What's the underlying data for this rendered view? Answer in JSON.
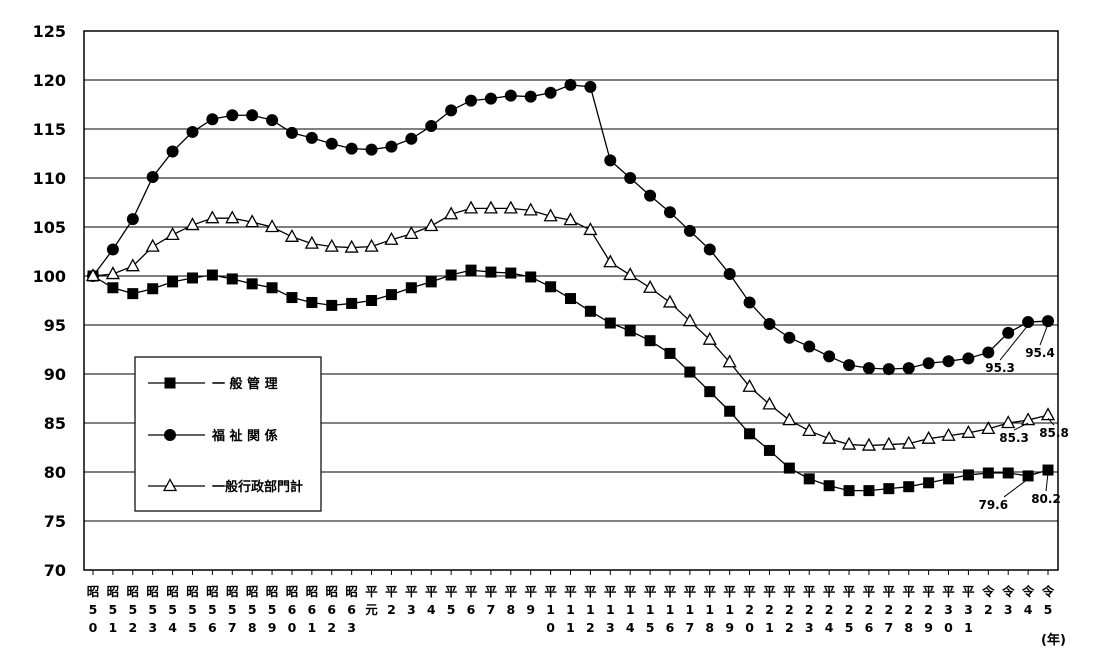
{
  "chart_data": {
    "type": "line",
    "ylim": [
      70,
      125
    ],
    "yticks": [
      70,
      75,
      80,
      85,
      90,
      95,
      100,
      105,
      110,
      115,
      120,
      125
    ],
    "grid": true,
    "legend_position": "left-middle",
    "x_unit_label": "(年)",
    "categories": [
      [
        "昭",
        "5",
        "0"
      ],
      [
        "昭",
        "5",
        "1"
      ],
      [
        "昭",
        "5",
        "2"
      ],
      [
        "昭",
        "5",
        "3"
      ],
      [
        "昭",
        "5",
        "4"
      ],
      [
        "昭",
        "5",
        "5"
      ],
      [
        "昭",
        "5",
        "6"
      ],
      [
        "昭",
        "5",
        "7"
      ],
      [
        "昭",
        "5",
        "8"
      ],
      [
        "昭",
        "5",
        "9"
      ],
      [
        "昭",
        "6",
        "0"
      ],
      [
        "昭",
        "6",
        "1"
      ],
      [
        "昭",
        "6",
        "2"
      ],
      [
        "昭",
        "6",
        "3"
      ],
      [
        "平",
        "元",
        ""
      ],
      [
        "平",
        "2",
        ""
      ],
      [
        "平",
        "3",
        ""
      ],
      [
        "平",
        "4",
        ""
      ],
      [
        "平",
        "5",
        ""
      ],
      [
        "平",
        "6",
        ""
      ],
      [
        "平",
        "7",
        ""
      ],
      [
        "平",
        "8",
        ""
      ],
      [
        "平",
        "9",
        ""
      ],
      [
        "平",
        "1",
        "0"
      ],
      [
        "平",
        "1",
        "1"
      ],
      [
        "平",
        "1",
        "2"
      ],
      [
        "平",
        "1",
        "3"
      ],
      [
        "平",
        "1",
        "4"
      ],
      [
        "平",
        "1",
        "5"
      ],
      [
        "平",
        "1",
        "6"
      ],
      [
        "平",
        "1",
        "7"
      ],
      [
        "平",
        "1",
        "8"
      ],
      [
        "平",
        "1",
        "9"
      ],
      [
        "平",
        "2",
        "0"
      ],
      [
        "平",
        "2",
        "1"
      ],
      [
        "平",
        "2",
        "2"
      ],
      [
        "平",
        "2",
        "3"
      ],
      [
        "平",
        "2",
        "4"
      ],
      [
        "平",
        "2",
        "5"
      ],
      [
        "平",
        "2",
        "6"
      ],
      [
        "平",
        "2",
        "7"
      ],
      [
        "平",
        "2",
        "8"
      ],
      [
        "平",
        "2",
        "9"
      ],
      [
        "平",
        "3",
        "0"
      ],
      [
        "平",
        "3",
        "1"
      ],
      [
        "令",
        "2",
        ""
      ],
      [
        "令",
        "3",
        ""
      ],
      [
        "令",
        "4",
        ""
      ],
      [
        "令",
        "5",
        ""
      ]
    ],
    "series": [
      {
        "name": "一 般 管 理",
        "marker": "square",
        "values": [
          100,
          98.8,
          98.2,
          98.7,
          99.4,
          99.8,
          100.1,
          99.7,
          99.2,
          98.8,
          97.8,
          97.3,
          97.0,
          97.2,
          97.5,
          98.1,
          98.8,
          99.4,
          100.1,
          100.6,
          100.4,
          100.3,
          99.9,
          98.9,
          97.7,
          96.4,
          95.2,
          94.4,
          93.4,
          92.1,
          90.2,
          88.2,
          86.2,
          83.9,
          82.2,
          80.4,
          79.3,
          78.6,
          78.1,
          78.1,
          78.3,
          78.5,
          78.9,
          79.3,
          79.7,
          79.9,
          79.9,
          79.6,
          80.2
        ],
        "labels": [
          {
            "index": 47,
            "text": "79.6"
          },
          {
            "index": 48,
            "text": "80.2"
          }
        ]
      },
      {
        "name": "福 祉 関 係",
        "marker": "circle",
        "values": [
          100,
          102.7,
          105.8,
          110.1,
          112.7,
          114.7,
          116.0,
          116.4,
          116.4,
          115.9,
          114.6,
          114.1,
          113.5,
          113.0,
          112.9,
          113.2,
          114.0,
          115.3,
          116.9,
          117.9,
          118.1,
          118.4,
          118.3,
          118.7,
          119.5,
          119.3,
          111.8,
          110.0,
          108.2,
          106.5,
          104.6,
          102.7,
          100.2,
          97.3,
          95.1,
          93.7,
          92.8,
          91.8,
          90.9,
          90.6,
          90.5,
          90.6,
          91.1,
          91.3,
          91.6,
          92.2,
          94.2,
          95.3,
          95.4
        ],
        "labels": [
          {
            "index": 47,
            "text": "95.3"
          },
          {
            "index": 48,
            "text": "95.4"
          }
        ]
      },
      {
        "name": "一般行政部門計",
        "marker": "triangle",
        "values": [
          100,
          100.2,
          101.0,
          103.0,
          104.2,
          105.2,
          105.9,
          105.9,
          105.5,
          105.0,
          104.0,
          103.3,
          103.0,
          102.9,
          103.0,
          103.7,
          104.3,
          105.1,
          106.3,
          106.9,
          106.9,
          106.9,
          106.7,
          106.1,
          105.7,
          104.7,
          101.4,
          100.1,
          98.8,
          97.3,
          95.4,
          93.5,
          91.2,
          88.7,
          86.9,
          85.3,
          84.2,
          83.4,
          82.8,
          82.7,
          82.8,
          82.9,
          83.4,
          83.7,
          84.0,
          84.4,
          85.0,
          85.3,
          85.8
        ],
        "labels": [
          {
            "index": 47,
            "text": "85.3"
          },
          {
            "index": 48,
            "text": "85.8"
          }
        ]
      }
    ]
  }
}
